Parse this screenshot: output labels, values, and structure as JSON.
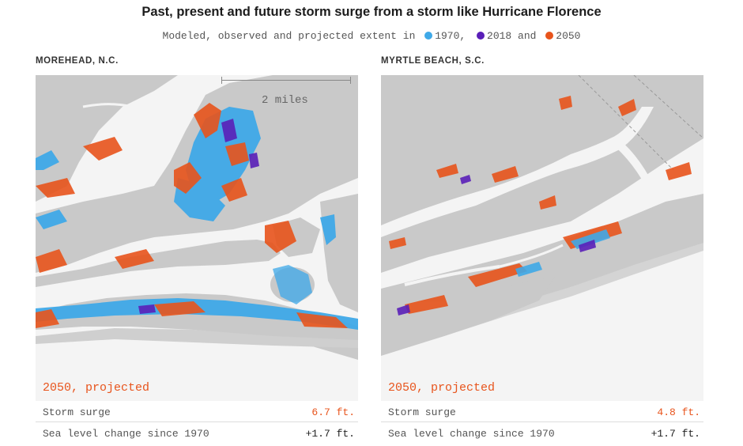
{
  "header": {
    "title": "Past, present and future storm surge from a storm like Hurricane Florence",
    "subtitle_prefix": "Modeled, observed and projected extent in",
    "legend": [
      {
        "label": "1970",
        "color": "#3fa9e8"
      },
      {
        "label": "2018",
        "color": "#5a1fb8"
      },
      {
        "label": "2050",
        "color": "#e8541c"
      }
    ],
    "legend_joiner": "and"
  },
  "panels": [
    {
      "location": "MOREHEAD, N.C.",
      "scale_label": "2 miles",
      "projection_label": "2050, projected",
      "stats": [
        {
          "label": "Storm surge",
          "value": "6.7 ft."
        },
        {
          "label": "Sea level change since 1970",
          "value": "+1.7 ft."
        }
      ]
    },
    {
      "location": "MYRTLE BEACH, S.C.",
      "projection_label": "2050, projected",
      "stats": [
        {
          "label": "Storm surge",
          "value": "4.8 ft."
        },
        {
          "label": "Sea level change since 1970",
          "value": "+1.7 ft."
        }
      ]
    }
  ],
  "colors": {
    "land": "#c9c9c9",
    "water": "#f4f4f4",
    "surge_1970": "#3fa9e8",
    "surge_2018": "#5a1fb8",
    "surge_2050": "#e8541c"
  }
}
